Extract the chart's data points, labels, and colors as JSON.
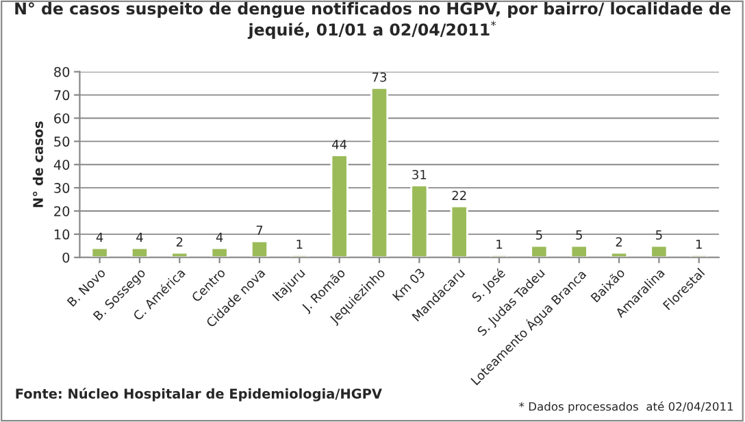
{
  "chart_data": {
    "type": "bar",
    "title": "N° de casos suspeito de dengue notificados no HGPV, por bairro/ localidade de jequié, 01/01 a 02/04/2011$^{*}$",
    "ylabel": "N° de casos",
    "categories": [
      "B. Novo",
      "B. Sossego",
      "C. América",
      "Centro",
      "Cidade nova",
      "Itajuru",
      "J. Romão",
      "Jequiezinho",
      "Km 03",
      "Mandacaru",
      "S. José",
      "S. Judas Tadeu",
      "Loteamento Água Branca",
      "Baixão",
      "Amaralina",
      "Florestal"
    ],
    "values": [
      4,
      4,
      2,
      4,
      7,
      1,
      44,
      73,
      31,
      22,
      1,
      5,
      5,
      2,
      5,
      1
    ],
    "color": "#9bbb59",
    "ylim": [
      0,
      80
    ],
    "yticks": [
      0,
      10,
      20,
      30,
      40,
      50,
      60,
      70,
      80
    ],
    "grid": "y",
    "data_labels": true,
    "legend": false,
    "annotations": [
      "Fonte: Núcleo Hospitalar de Epidemiologia/HGPV",
      "* Dados processados  até 02/04/2011"
    ]
  }
}
